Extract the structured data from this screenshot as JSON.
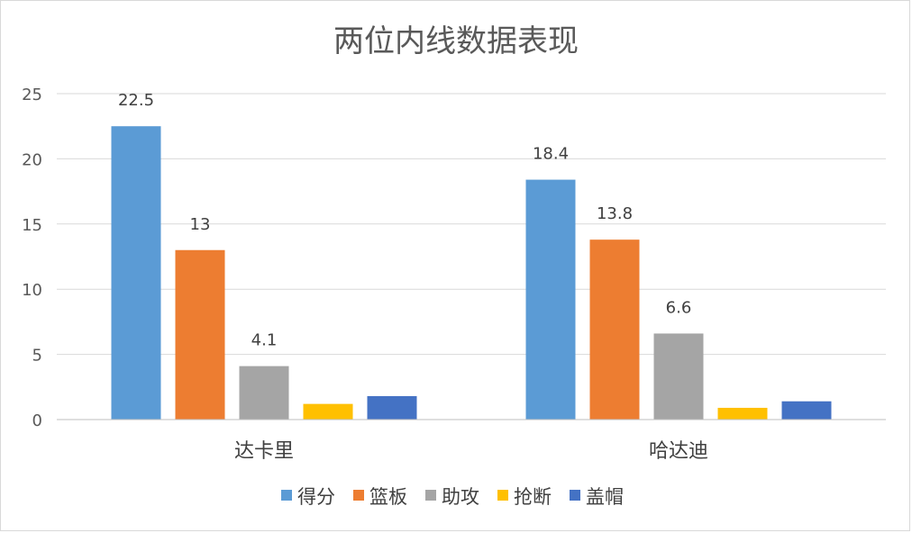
{
  "chart_data": {
    "type": "bar",
    "title": "两位内线数据表现",
    "categories": [
      "达卡里",
      "哈达迪"
    ],
    "series": [
      {
        "name": "得分",
        "color": "#5B9BD5",
        "values": [
          22.5,
          18.4
        ],
        "labels": [
          "22.5",
          "18.4"
        ]
      },
      {
        "name": "篮板",
        "color": "#ED7D31",
        "values": [
          13,
          13.8
        ],
        "labels": [
          "13",
          "13.8"
        ]
      },
      {
        "name": "助攻",
        "color": "#A5A5A5",
        "values": [
          4.1,
          6.6
        ],
        "labels": [
          "4.1",
          "6.6"
        ]
      },
      {
        "name": "抢断",
        "color": "#FFC000",
        "values": [
          1.2,
          0.9
        ],
        "labels": [
          "",
          ""
        ]
      },
      {
        "name": "盖帽",
        "color": "#4472C4",
        "values": [
          1.8,
          1.4
        ],
        "labels": [
          "",
          ""
        ]
      }
    ],
    "yticks": [
      "0",
      "5",
      "10",
      "15",
      "20",
      "25"
    ],
    "ylim": [
      0,
      25
    ],
    "grid": true,
    "legend_position": "bottom",
    "xlabel": "",
    "ylabel": ""
  }
}
